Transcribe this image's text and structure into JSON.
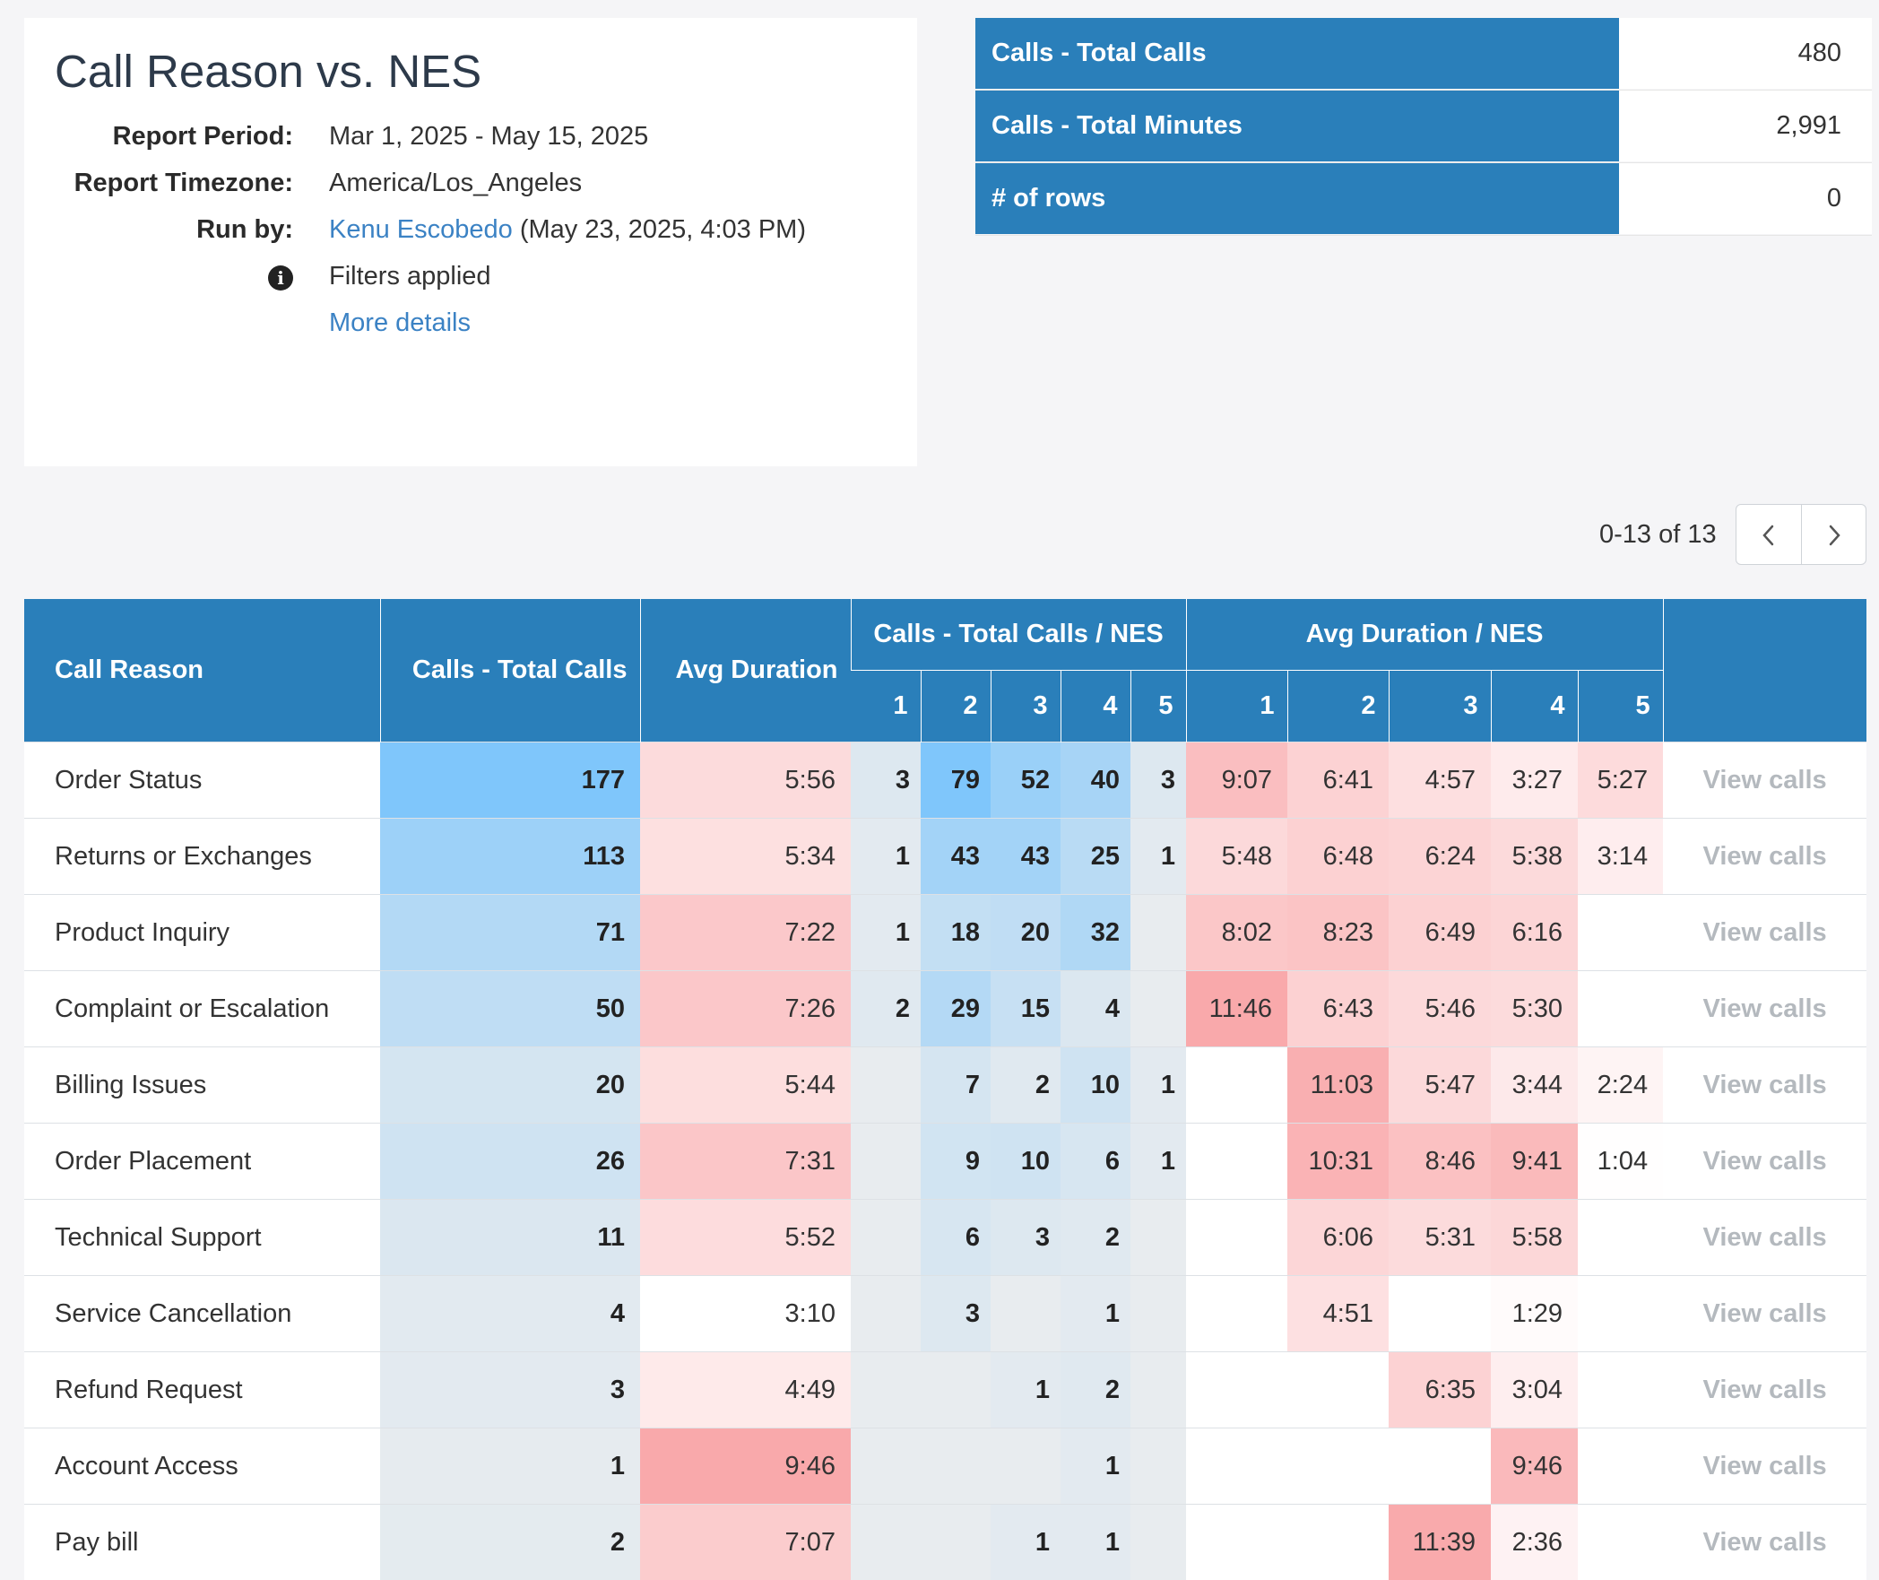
{
  "report": {
    "title": "Call Reason vs. NES",
    "period_label": "Report Period:",
    "period_value": "Mar 1, 2025 - May 15, 2025",
    "timezone_label": "Report Timezone:",
    "timezone_value": "America/Los_Angeles",
    "run_by_label": "Run by:",
    "run_by_name": "Kenu Escobedo",
    "run_by_time": "(May 23, 2025, 4:03 PM)",
    "filters_text": "Filters applied",
    "more_details": "More details"
  },
  "summary": [
    {
      "label": "Calls - Total Calls",
      "value": "480"
    },
    {
      "label": "Calls - Total Minutes",
      "value": "2,991"
    },
    {
      "label": "# of rows",
      "value": "0"
    }
  ],
  "pagination": {
    "text": "0-13 of 13"
  },
  "table": {
    "headers": {
      "call_reason": "Call Reason",
      "total_calls": "Calls - Total Calls",
      "avg_duration": "Avg Duration",
      "calls_nes": "Calls - Total Calls / NES",
      "dur_nes": "Avg Duration / NES",
      "nes_levels": [
        "1",
        "2",
        "3",
        "4",
        "5"
      ]
    },
    "view_label": "View calls",
    "rows": [
      {
        "reason": "Order Status",
        "calls": "177",
        "avg": "5:56",
        "calls_nes": [
          "3",
          "79",
          "52",
          "40",
          "3"
        ],
        "dur_nes": [
          "9:07",
          "6:41",
          "4:57",
          "3:27",
          "5:27"
        ]
      },
      {
        "reason": "Returns or Exchanges",
        "calls": "113",
        "avg": "5:34",
        "calls_nes": [
          "1",
          "43",
          "43",
          "25",
          "1"
        ],
        "dur_nes": [
          "5:48",
          "6:48",
          "6:24",
          "5:38",
          "3:14"
        ]
      },
      {
        "reason": "Product Inquiry",
        "calls": "71",
        "avg": "7:22",
        "calls_nes": [
          "1",
          "18",
          "20",
          "32",
          ""
        ],
        "dur_nes": [
          "8:02",
          "8:23",
          "6:49",
          "6:16",
          ""
        ]
      },
      {
        "reason": "Complaint or Escalation",
        "calls": "50",
        "avg": "7:26",
        "calls_nes": [
          "2",
          "29",
          "15",
          "4",
          ""
        ],
        "dur_nes": [
          "11:46",
          "6:43",
          "5:46",
          "5:30",
          ""
        ]
      },
      {
        "reason": "Billing Issues",
        "calls": "20",
        "avg": "5:44",
        "calls_nes": [
          "",
          "7",
          "2",
          "10",
          "1"
        ],
        "dur_nes": [
          "",
          "11:03",
          "5:47",
          "3:44",
          "2:24"
        ]
      },
      {
        "reason": "Order Placement",
        "calls": "26",
        "avg": "7:31",
        "calls_nes": [
          "",
          "9",
          "10",
          "6",
          "1"
        ],
        "dur_nes": [
          "",
          "10:31",
          "8:46",
          "9:41",
          "1:04"
        ]
      },
      {
        "reason": "Technical Support",
        "calls": "11",
        "avg": "5:52",
        "calls_nes": [
          "",
          "6",
          "3",
          "2",
          ""
        ],
        "dur_nes": [
          "",
          "6:06",
          "5:31",
          "5:58",
          ""
        ]
      },
      {
        "reason": "Service Cancellation",
        "calls": "4",
        "avg": "3:10",
        "calls_nes": [
          "",
          "3",
          "",
          "1",
          ""
        ],
        "dur_nes": [
          "",
          "4:51",
          "",
          "1:29",
          ""
        ]
      },
      {
        "reason": "Refund Request",
        "calls": "3",
        "avg": "4:49",
        "calls_nes": [
          "",
          "",
          "1",
          "2",
          ""
        ],
        "dur_nes": [
          "",
          "",
          "6:35",
          "3:04",
          ""
        ]
      },
      {
        "reason": "Account Access",
        "calls": "1",
        "avg": "9:46",
        "calls_nes": [
          "",
          "",
          "",
          "1",
          ""
        ],
        "dur_nes": [
          "",
          "",
          "",
          "9:46",
          ""
        ]
      },
      {
        "reason": "Pay bill",
        "calls": "2",
        "avg": "7:07",
        "calls_nes": [
          "",
          "",
          "1",
          "1",
          ""
        ],
        "dur_nes": [
          "",
          "",
          "11:39",
          "2:36",
          ""
        ]
      }
    ]
  },
  "colors": {
    "header_blue": "#2a7fba",
    "link_blue": "#3b82c4",
    "count_high": "#7fc6fb",
    "duration_high": "#f9a9ab"
  }
}
